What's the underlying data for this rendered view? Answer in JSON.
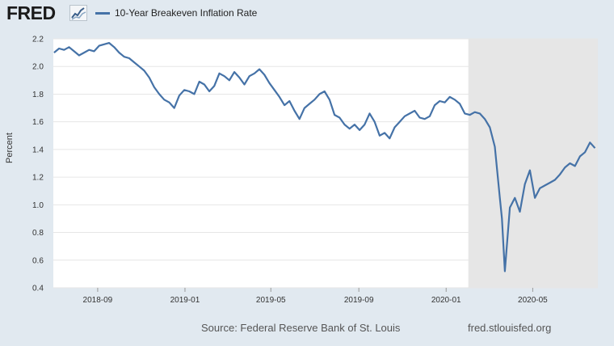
{
  "header": {
    "logo_text": "FRED",
    "logo_mark_icon": "fred-chart-logo-icon"
  },
  "footer": {
    "source": "Source: Federal Reserve Bank of St. Louis",
    "url": "fred.stlouisfed.org"
  },
  "colors": {
    "line": "#4572a7",
    "plot_background": "#ffffff",
    "recession_shading": "#e6e6e6",
    "page_background": "#e1e9f0",
    "grid": "#e6e6e6"
  },
  "chart_data": {
    "type": "line",
    "title": "",
    "xlabel": "",
    "ylabel": "Percent",
    "xlim": [
      "2018-07-01",
      "2020-07-31"
    ],
    "ylim": [
      0.4,
      2.2
    ],
    "grid": true,
    "legend_position": "top-left",
    "x_ticks": [
      {
        "date": "2018-09-01",
        "label": "2018-09"
      },
      {
        "date": "2019-01-01",
        "label": "2019-01"
      },
      {
        "date": "2019-05-01",
        "label": "2019-05"
      },
      {
        "date": "2019-09-01",
        "label": "2019-09"
      },
      {
        "date": "2020-01-01",
        "label": "2020-01"
      },
      {
        "date": "2020-05-01",
        "label": "2020-05"
      }
    ],
    "y_ticks": [
      0.4,
      0.6,
      0.8,
      1.0,
      1.2,
      1.4,
      1.6,
      1.8,
      2.0,
      2.2
    ],
    "shaded_regions": [
      {
        "start": "2020-02-01",
        "end": "2020-07-31",
        "label": "recession"
      }
    ],
    "series": [
      {
        "name": "10-Year Breakeven Inflation Rate",
        "x": [
          "2018-07-02",
          "2018-07-09",
          "2018-07-16",
          "2018-07-23",
          "2018-07-30",
          "2018-08-06",
          "2018-08-13",
          "2018-08-20",
          "2018-08-27",
          "2018-09-03",
          "2018-09-10",
          "2018-09-17",
          "2018-09-24",
          "2018-10-01",
          "2018-10-08",
          "2018-10-15",
          "2018-10-22",
          "2018-10-29",
          "2018-11-05",
          "2018-11-12",
          "2018-11-19",
          "2018-11-26",
          "2018-12-03",
          "2018-12-10",
          "2018-12-17",
          "2018-12-24",
          "2018-12-31",
          "2019-01-07",
          "2019-01-14",
          "2019-01-21",
          "2019-01-28",
          "2019-02-04",
          "2019-02-11",
          "2019-02-18",
          "2019-02-25",
          "2019-03-04",
          "2019-03-11",
          "2019-03-18",
          "2019-03-25",
          "2019-04-01",
          "2019-04-08",
          "2019-04-15",
          "2019-04-22",
          "2019-04-29",
          "2019-05-06",
          "2019-05-13",
          "2019-05-20",
          "2019-05-27",
          "2019-06-03",
          "2019-06-10",
          "2019-06-17",
          "2019-06-24",
          "2019-07-01",
          "2019-07-08",
          "2019-07-15",
          "2019-07-22",
          "2019-07-29",
          "2019-08-05",
          "2019-08-12",
          "2019-08-19",
          "2019-08-26",
          "2019-09-02",
          "2019-09-09",
          "2019-09-16",
          "2019-09-23",
          "2019-09-30",
          "2019-10-07",
          "2019-10-14",
          "2019-10-21",
          "2019-10-28",
          "2019-11-04",
          "2019-11-11",
          "2019-11-18",
          "2019-11-25",
          "2019-12-02",
          "2019-12-09",
          "2019-12-16",
          "2019-12-23",
          "2019-12-30",
          "2020-01-06",
          "2020-01-13",
          "2020-01-20",
          "2020-01-27",
          "2020-02-03",
          "2020-02-10",
          "2020-02-17",
          "2020-02-24",
          "2020-03-02",
          "2020-03-09",
          "2020-03-16",
          "2020-03-19",
          "2020-03-23",
          "2020-03-30",
          "2020-04-06",
          "2020-04-13",
          "2020-04-20",
          "2020-04-27",
          "2020-05-04",
          "2020-05-11",
          "2020-05-18",
          "2020-05-25",
          "2020-06-01",
          "2020-06-08",
          "2020-06-15",
          "2020-06-22",
          "2020-06-29",
          "2020-07-06",
          "2020-07-13",
          "2020-07-20",
          "2020-07-27"
        ],
        "y": [
          2.1,
          2.13,
          2.12,
          2.14,
          2.11,
          2.08,
          2.1,
          2.12,
          2.11,
          2.15,
          2.16,
          2.17,
          2.14,
          2.1,
          2.07,
          2.06,
          2.03,
          2.0,
          1.97,
          1.92,
          1.85,
          1.8,
          1.76,
          1.74,
          1.7,
          1.79,
          1.83,
          1.82,
          1.8,
          1.89,
          1.87,
          1.82,
          1.86,
          1.95,
          1.93,
          1.9,
          1.96,
          1.92,
          1.87,
          1.93,
          1.95,
          1.98,
          1.94,
          1.88,
          1.83,
          1.78,
          1.72,
          1.75,
          1.68,
          1.62,
          1.7,
          1.73,
          1.76,
          1.8,
          1.82,
          1.76,
          1.65,
          1.63,
          1.58,
          1.55,
          1.58,
          1.54,
          1.58,
          1.66,
          1.6,
          1.5,
          1.52,
          1.48,
          1.56,
          1.6,
          1.64,
          1.66,
          1.68,
          1.63,
          1.62,
          1.64,
          1.72,
          1.75,
          1.74,
          1.78,
          1.76,
          1.73,
          1.66,
          1.65,
          1.67,
          1.66,
          1.62,
          1.56,
          1.42,
          1.05,
          0.9,
          0.52,
          0.98,
          1.05,
          0.95,
          1.15,
          1.25,
          1.05,
          1.12,
          1.14,
          1.16,
          1.18,
          1.22,
          1.27,
          1.3,
          1.28,
          1.35,
          1.38,
          1.45,
          1.41
        ]
      }
    ]
  }
}
